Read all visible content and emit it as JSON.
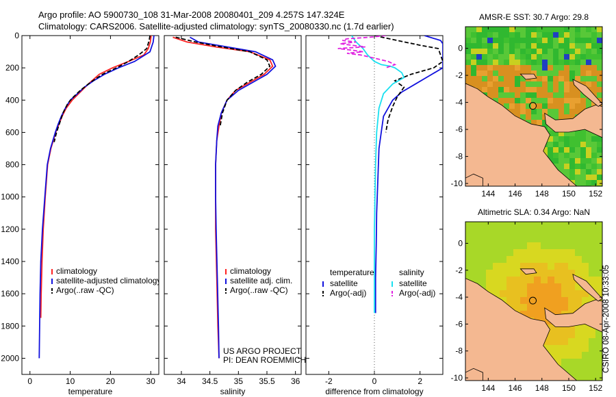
{
  "header": {
    "line1": "Argo profile: AO 5900730_108 31-Mar-2008 20080401_209 4.257S 147.324E",
    "line2": "Climatology: CARS2006. Satellite-adjusted climatology: synTS_20080330.nc (1.7d earlier)"
  },
  "side_label": "CSIRO 08-Apr-2008 10:33:05",
  "colors": {
    "red": "#ff2020",
    "blue": "#1010dd",
    "black": "#000000",
    "cyan": "#18e0f0",
    "magenta": "#e020e0",
    "land": "#f4b891"
  },
  "chart_data": [
    {
      "type": "line",
      "name": "temperature-panel",
      "xlabel": "temperature",
      "ylabel": "",
      "xlim": [
        -2,
        32
      ],
      "ylim": [
        2100,
        0
      ],
      "xticks": [
        0,
        10,
        20,
        30
      ],
      "yticks": [
        0,
        200,
        400,
        600,
        800,
        1000,
        1200,
        1400,
        1600,
        1800,
        2000
      ],
      "legend": [
        "climatology",
        "satellite-adjusted climatology",
        "Argo(..raw -QC)"
      ],
      "series": [
        {
          "name": "climatology",
          "color": "red",
          "x": [
            30.1,
            29.9,
            29.4,
            28.3,
            24.5,
            20.5,
            17.2,
            14.5,
            12.5,
            10.5,
            9.0,
            8.0,
            7.2,
            6.4,
            5.2,
            4.4,
            3.8,
            3.3,
            3.0,
            2.8,
            2.7
          ],
          "y": [
            0,
            40,
            80,
            120,
            160,
            200,
            240,
            300,
            350,
            400,
            450,
            500,
            550,
            600,
            700,
            800,
            1000,
            1200,
            1400,
            1600,
            1750
          ]
        },
        {
          "name": "satellite-adjusted climatology",
          "color": "blue",
          "x": [
            30.8,
            30.6,
            29.8,
            26.0,
            22.0,
            18.5,
            15.8,
            13.5,
            11.8,
            10.0,
            8.8,
            7.8,
            7.0,
            6.3,
            5.1,
            4.3,
            3.7,
            3.1,
            2.7,
            2.5,
            2.4,
            2.3
          ],
          "y": [
            0,
            40,
            100,
            160,
            200,
            240,
            280,
            320,
            360,
            400,
            450,
            500,
            550,
            600,
            700,
            800,
            1000,
            1200,
            1400,
            1600,
            1800,
            2000
          ]
        },
        {
          "name": "Argo(..raw -QC)",
          "color": "black",
          "x": [
            29.8,
            29.6,
            29.0,
            27.0,
            24.5,
            21.5,
            18.0,
            15.0,
            12.5,
            10.8,
            9.4,
            8.2,
            7.4,
            6.6,
            6.0
          ],
          "y": [
            0,
            30,
            80,
            120,
            160,
            200,
            240,
            290,
            340,
            380,
            420,
            480,
            540,
            600,
            660
          ]
        }
      ]
    },
    {
      "type": "line",
      "name": "salinity-panel",
      "xlabel": "salinity",
      "xlim": [
        33.7,
        36.1
      ],
      "ylim": [
        2100,
        0
      ],
      "xticks": [
        34,
        34.5,
        35,
        35.5,
        36
      ],
      "legend": [
        "climatology",
        "satellite adj. clim.",
        "Argo(..raw -QC)"
      ],
      "annotation": [
        "US ARGO PROJECT",
        "PI: DEAN ROEMMICH"
      ],
      "series": [
        {
          "name": "climatology",
          "color": "red",
          "x": [
            33.85,
            34.1,
            34.6,
            35.2,
            35.55,
            35.6,
            35.45,
            35.2,
            34.95,
            34.8,
            34.7,
            34.66,
            34.62,
            34.6,
            34.6,
            34.6,
            34.62,
            34.64,
            34.66
          ],
          "y": [
            10,
            40,
            70,
            100,
            150,
            190,
            240,
            290,
            340,
            400,
            480,
            560,
            650,
            800,
            1000,
            1200,
            1500,
            1800,
            2000
          ]
        },
        {
          "name": "satellite adj. clim.",
          "color": "blue",
          "x": [
            34.15,
            34.3,
            34.8,
            35.3,
            35.6,
            35.65,
            35.5,
            35.25,
            35.0,
            34.8,
            34.7,
            34.64,
            34.62,
            34.6,
            34.6,
            34.61,
            34.63,
            34.65,
            34.66
          ],
          "y": [
            10,
            40,
            70,
            100,
            150,
            190,
            240,
            290,
            340,
            400,
            480,
            560,
            650,
            800,
            1000,
            1200,
            1500,
            1800,
            2000
          ]
        },
        {
          "name": "Argo(..raw -QC)",
          "color": "black",
          "x": [
            33.9,
            34.25,
            34.7,
            35.2,
            35.5,
            35.55,
            35.4,
            35.15,
            34.95,
            34.8,
            34.72,
            34.68
          ],
          "y": [
            10,
            40,
            70,
            100,
            150,
            190,
            240,
            290,
            340,
            400,
            480,
            560
          ]
        }
      ]
    },
    {
      "type": "line",
      "name": "difference-panel",
      "xlabel": "difference from climatology",
      "xlim": [
        -3,
        3
      ],
      "ylim": [
        2100,
        0
      ],
      "xticks": [
        -2,
        0,
        2
      ],
      "zero_line": 0,
      "legend_headers": [
        "temperature",
        "salinity"
      ],
      "legend": [
        "satellite",
        "Argo(-adj)",
        "satellite",
        "Argo(-adj)"
      ],
      "series": [
        {
          "name": "temperature satellite",
          "color": "blue",
          "dash": false,
          "x": [
            2.2,
            2.9,
            3.0,
            3.0,
            2.4,
            1.8,
            1.2,
            0.8,
            0.6,
            0.4,
            0.3,
            0.2,
            0.15,
            0.1,
            0.08,
            0.05,
            0.05,
            0.05
          ],
          "y": [
            0,
            30,
            50,
            200,
            250,
            300,
            350,
            400,
            450,
            500,
            600,
            700,
            900,
            1100,
            1300,
            1500,
            1600,
            1720
          ]
        },
        {
          "name": "temperature Argo(-adj)",
          "color": "black",
          "dash": true,
          "x": [
            0.0,
            1.0,
            2.0,
            2.8,
            3.0,
            2.6,
            1.6,
            0.9,
            1.3,
            1.0,
            0.8,
            0.6,
            0.5
          ],
          "y": [
            0,
            30,
            60,
            80,
            160,
            200,
            240,
            280,
            320,
            380,
            440,
            520,
            600
          ]
        },
        {
          "name": "salinity satellite",
          "color": "cyan",
          "dash": false,
          "x": [
            -1.0,
            -0.8,
            -0.5,
            -0.3,
            0.0,
            0.3,
            0.7,
            0.9,
            1.2,
            1.3,
            0.8,
            0.4,
            0.2,
            0.1,
            0.05,
            0.0,
            0.0
          ],
          "y": [
            0,
            40,
            80,
            120,
            160,
            180,
            190,
            200,
            230,
            260,
            300,
            360,
            450,
            600,
            800,
            1200,
            1720
          ]
        },
        {
          "name": "salinity Argo(-adj)",
          "color": "magenta",
          "dash": true,
          "x": [
            0.5,
            -0.2,
            -1.2,
            -1.4,
            -0.8,
            -1.5,
            -1.0,
            -0.4,
            -1.6,
            -1.0,
            -0.5,
            -1.2,
            -0.6,
            0.0,
            0.6,
            0.9,
            0.5
          ],
          "y": [
            0,
            10,
            20,
            30,
            40,
            50,
            60,
            70,
            80,
            90,
            100,
            110,
            120,
            140,
            160,
            180,
            200
          ]
        }
      ]
    },
    {
      "type": "heatmap",
      "name": "sst-map",
      "title": "AMSR-E SST: 30.7 Argo: 29.8",
      "xlim": [
        142.3,
        152.5
      ],
      "ylim": [
        -10.2,
        1.6
      ],
      "xticks": [
        144,
        146,
        148,
        150,
        152
      ],
      "yticks": [
        0,
        -2,
        -4,
        -6,
        -8,
        -10
      ],
      "marker": {
        "lon": 147.324,
        "lat": -4.257
      }
    },
    {
      "type": "heatmap",
      "name": "sla-map",
      "title": "Altimetric SLA: 0.34 Argo: NaN",
      "xlim": [
        142.3,
        152.5
      ],
      "ylim": [
        -10.2,
        1.6
      ],
      "xticks": [
        144,
        146,
        148,
        150,
        152
      ],
      "yticks": [
        0,
        -2,
        -4,
        -6,
        -8,
        -10
      ],
      "marker": {
        "lon": 147.324,
        "lat": -4.257
      }
    }
  ]
}
